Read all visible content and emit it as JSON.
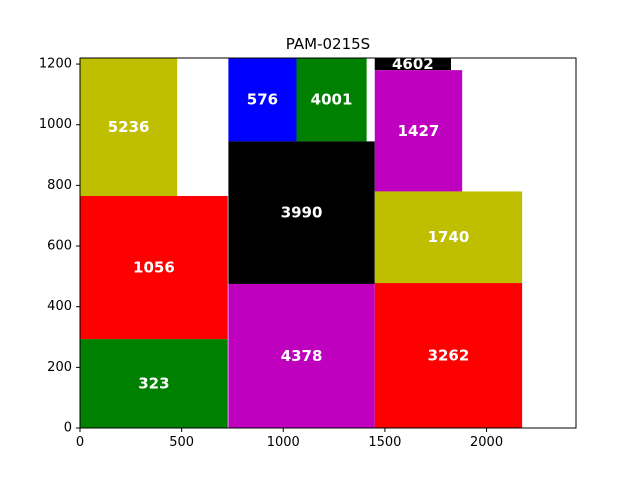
{
  "chart_data": {
    "type": "rectangle-packing",
    "title": "PAM-0215S",
    "xlabel": "",
    "ylabel": "",
    "xlim": [
      0,
      2440
    ],
    "ylim": [
      0,
      1220
    ],
    "xticks": [
      0,
      500,
      1000,
      1500,
      2000
    ],
    "yticks": [
      0,
      200,
      400,
      600,
      800,
      1000,
      1200
    ],
    "grid": false,
    "colors": {
      "y": "#bfbf00",
      "r": "#ff0000",
      "g": "#008000",
      "b": "#0000ff",
      "k": "#000000",
      "m": "#bf00bf"
    },
    "rectangles": [
      {
        "label": "5236",
        "x": 0,
        "y": 765,
        "w": 478,
        "h": 455,
        "color": "y"
      },
      {
        "label": "1056",
        "x": 0,
        "y": 293,
        "w": 727,
        "h": 472,
        "color": "r"
      },
      {
        "label": "323",
        "x": 0,
        "y": 0,
        "w": 727,
        "h": 293,
        "color": "g"
      },
      {
        "label": "576",
        "x": 730,
        "y": 945,
        "w": 335,
        "h": 275,
        "color": "b"
      },
      {
        "label": "4001",
        "x": 1065,
        "y": 945,
        "w": 345,
        "h": 275,
        "color": "g"
      },
      {
        "label": "3990",
        "x": 730,
        "y": 475,
        "w": 720,
        "h": 470,
        "color": "k"
      },
      {
        "label": "4378",
        "x": 730,
        "y": 0,
        "w": 720,
        "h": 475,
        "color": "m"
      },
      {
        "label": "4602",
        "x": 1450,
        "y": 1180,
        "w": 375,
        "h": 40,
        "color": "k"
      },
      {
        "label": "1427",
        "x": 1450,
        "y": 780,
        "w": 430,
        "h": 400,
        "color": "m"
      },
      {
        "label": "1740",
        "x": 1450,
        "y": 478,
        "w": 725,
        "h": 302,
        "color": "y"
      },
      {
        "label": "3262",
        "x": 1450,
        "y": 0,
        "w": 725,
        "h": 478,
        "color": "r"
      }
    ]
  }
}
